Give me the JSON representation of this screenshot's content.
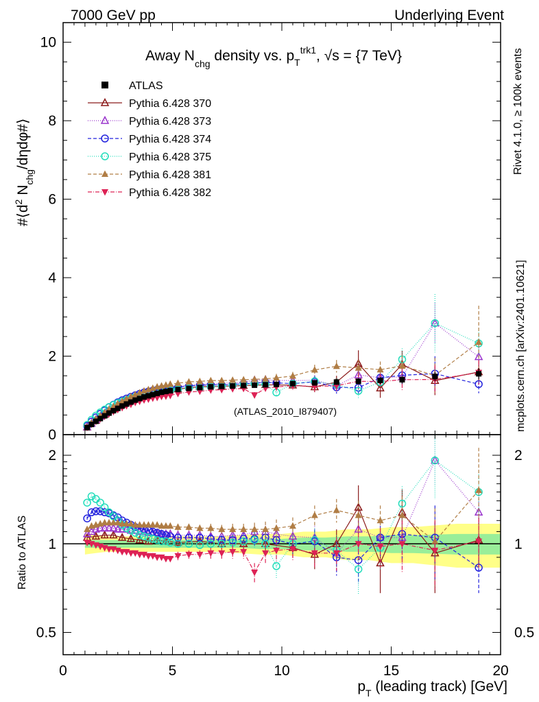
{
  "header": {
    "left": "7000 GeV pp",
    "right": "Underlying Event"
  },
  "side": {
    "rivet": "Rivet 4.1.0, ≥ 100k events",
    "mcplots": "mcplots.cern.ch [arXiv:2401.10621]"
  },
  "chart_data": {
    "type": "scatter",
    "title_parts": {
      "a": "Away N",
      "b": "chg",
      "c": " density vs. p",
      "d": "T",
      "e": "trk1",
      "f": ", √s = {7 TeV}"
    },
    "watermark": "(ATLAS_2010_I879407)",
    "ylabel_parts": {
      "a": "#⟨d",
      "b": "2",
      "c": " N",
      "d": "chg",
      "e": "/dηdφ#⟩"
    },
    "xlabel_parts": {
      "a": "p",
      "b": "T",
      "c": " (leading track) [GeV]"
    },
    "ratio_ylabel": "Ratio to ATLAS",
    "xlim": [
      0,
      20
    ],
    "ylim_main": [
      0,
      10.5
    ],
    "ylim_ratio": [
      0.42,
      2.35
    ],
    "xticks": [
      "0",
      "5",
      "10",
      "15",
      "20"
    ],
    "yticks_main": [
      "0",
      "2",
      "4",
      "6",
      "8",
      "10"
    ],
    "yticks_ratio": [
      "0.5",
      "1",
      "2"
    ],
    "band": {
      "x": [
        1.0,
        1.5,
        2.0,
        3.0,
        4.0,
        5.0,
        6.0,
        7.0,
        8.0,
        9.0,
        10.0,
        11.0,
        12.0,
        13.0,
        14.0,
        15.0,
        16.0,
        18.0,
        20.0
      ],
      "stat": [
        0.03,
        0.03,
        0.03,
        0.03,
        0.03,
        0.03,
        0.03,
        0.03,
        0.03,
        0.04,
        0.04,
        0.05,
        0.05,
        0.06,
        0.06,
        0.07,
        0.07,
        0.08,
        0.08
      ],
      "tot": [
        0.08,
        0.07,
        0.06,
        0.06,
        0.06,
        0.06,
        0.06,
        0.06,
        0.07,
        0.08,
        0.08,
        0.1,
        0.1,
        0.12,
        0.12,
        0.14,
        0.14,
        0.17,
        0.17
      ]
    },
    "data": {
      "name": "ATLAS",
      "x": [
        1.1,
        1.3,
        1.5,
        1.7,
        1.9,
        2.1,
        2.3,
        2.5,
        2.7,
        2.9,
        3.1,
        3.3,
        3.5,
        3.7,
        3.9,
        4.1,
        4.3,
        4.5,
        4.7,
        4.9,
        5.25,
        5.75,
        6.25,
        6.75,
        7.25,
        7.75,
        8.25,
        8.75,
        9.25,
        9.75,
        10.5,
        11.5,
        12.5,
        13.5,
        14.5,
        15.5,
        17.0,
        19.0
      ],
      "y": [
        0.18,
        0.26,
        0.34,
        0.41,
        0.48,
        0.55,
        0.61,
        0.67,
        0.73,
        0.78,
        0.83,
        0.88,
        0.92,
        0.96,
        0.99,
        1.02,
        1.05,
        1.08,
        1.1,
        1.12,
        1.15,
        1.18,
        1.2,
        1.22,
        1.23,
        1.24,
        1.25,
        1.26,
        1.27,
        1.28,
        1.3,
        1.32,
        1.34,
        1.36,
        1.38,
        1.4,
        1.48,
        1.55
      ],
      "err": [
        0.01,
        0.01,
        0.01,
        0.01,
        0.01,
        0.01,
        0.01,
        0.01,
        0.01,
        0.01,
        0.01,
        0.01,
        0.01,
        0.01,
        0.01,
        0.01,
        0.01,
        0.01,
        0.01,
        0.01,
        0.02,
        0.02,
        0.02,
        0.02,
        0.03,
        0.03,
        0.03,
        0.04,
        0.04,
        0.05,
        0.05,
        0.06,
        0.07,
        0.08,
        0.09,
        0.1,
        0.12,
        0.14
      ],
      "color": "#000000"
    },
    "series": [
      {
        "name": "Pythia 6.428 370",
        "color": "#8B1A1A",
        "marker": "tri-open",
        "dash": "",
        "x": [
          1.1,
          1.5,
          1.9,
          2.3,
          2.7,
          3.1,
          3.5,
          3.9,
          4.3,
          4.7,
          5.25,
          6.25,
          7.25,
          8.25,
          9.25,
          10.5,
          11.5,
          12.5,
          13.5,
          14.5,
          15.5,
          17.0,
          19.0
        ],
        "r": [
          1.05,
          1.06,
          1.07,
          1.07,
          1.05,
          1.04,
          1.03,
          1.02,
          1.03,
          1.02,
          1.01,
          1.02,
          1.0,
          1.0,
          1.0,
          0.97,
          0.92,
          1.0,
          1.33,
          0.86,
          1.28,
          0.93,
          1.03
        ],
        "e": [
          0.02,
          0.02,
          0.02,
          0.02,
          0.02,
          0.02,
          0.02,
          0.02,
          0.02,
          0.02,
          0.03,
          0.03,
          0.04,
          0.05,
          0.06,
          0.07,
          0.1,
          0.12,
          0.25,
          0.18,
          0.25,
          0.25,
          0.2
        ]
      },
      {
        "name": "Pythia 6.428 373",
        "color": "#9933CC",
        "marker": "tri-open",
        "dash": "1,2",
        "x": [
          1.1,
          1.3,
          1.5,
          1.7,
          1.9,
          2.1,
          2.3,
          2.5,
          2.7,
          2.9,
          3.1,
          3.3,
          3.5,
          3.7,
          3.9,
          4.1,
          4.3,
          4.5,
          4.7,
          4.9,
          5.25,
          5.75,
          6.25,
          6.75,
          7.25,
          7.75,
          8.25,
          8.75,
          9.25,
          9.75,
          10.5,
          11.5,
          12.5,
          13.5,
          14.5,
          15.5,
          17.0,
          19.0
        ],
        "r": [
          1.08,
          1.1,
          1.12,
          1.13,
          1.13,
          1.13,
          1.13,
          1.12,
          1.12,
          1.12,
          1.11,
          1.11,
          1.1,
          1.1,
          1.09,
          1.09,
          1.09,
          1.08,
          1.08,
          1.08,
          1.07,
          1.07,
          1.07,
          1.06,
          1.06,
          1.07,
          1.07,
          1.1,
          1.1,
          1.08,
          1.06,
          1.05,
          0.93,
          1.12,
          1.05,
          1.05,
          1.92,
          1.28
        ],
        "e": [
          0.02,
          0.02,
          0.02,
          0.02,
          0.02,
          0.02,
          0.02,
          0.02,
          0.02,
          0.02,
          0.02,
          0.02,
          0.02,
          0.02,
          0.02,
          0.02,
          0.02,
          0.02,
          0.02,
          0.02,
          0.03,
          0.03,
          0.03,
          0.04,
          0.04,
          0.05,
          0.05,
          0.06,
          0.07,
          0.08,
          0.08,
          0.1,
          0.12,
          0.15,
          0.15,
          0.2,
          0.35,
          0.25
        ]
      },
      {
        "name": "Pythia 6.428 374",
        "color": "#2222DD",
        "marker": "circ-open",
        "dash": "5,3",
        "x": [
          1.1,
          1.3,
          1.5,
          1.7,
          1.9,
          2.1,
          2.3,
          2.5,
          2.7,
          2.9,
          3.1,
          3.3,
          3.5,
          3.7,
          3.9,
          4.1,
          4.3,
          4.5,
          4.7,
          4.9,
          5.25,
          5.75,
          6.25,
          6.75,
          7.25,
          7.75,
          8.25,
          8.75,
          9.25,
          9.75,
          10.5,
          11.5,
          12.5,
          13.5,
          14.5,
          15.5,
          17.0,
          19.0
        ],
        "r": [
          1.22,
          1.28,
          1.29,
          1.29,
          1.28,
          1.27,
          1.25,
          1.23,
          1.2,
          1.18,
          1.16,
          1.14,
          1.13,
          1.12,
          1.11,
          1.1,
          1.09,
          1.08,
          1.07,
          1.06,
          1.05,
          1.05,
          1.05,
          1.04,
          1.03,
          1.03,
          1.04,
          1.04,
          1.05,
          1.03,
          1.0,
          1.02,
          0.9,
          0.88,
          1.05,
          1.08,
          1.05,
          0.83
        ],
        "e": [
          0.02,
          0.02,
          0.02,
          0.02,
          0.02,
          0.02,
          0.02,
          0.02,
          0.02,
          0.02,
          0.02,
          0.02,
          0.02,
          0.02,
          0.02,
          0.02,
          0.02,
          0.02,
          0.02,
          0.02,
          0.03,
          0.03,
          0.03,
          0.04,
          0.04,
          0.05,
          0.05,
          0.06,
          0.07,
          0.08,
          0.08,
          0.1,
          0.12,
          0.15,
          0.15,
          0.2,
          0.3,
          0.15
        ]
      },
      {
        "name": "Pythia 6.428 375",
        "color": "#22DDBB",
        "marker": "circ-open",
        "dash": "1,2",
        "x": [
          1.1,
          1.3,
          1.5,
          1.7,
          1.9,
          2.1,
          2.3,
          2.5,
          2.7,
          2.9,
          3.1,
          3.3,
          3.5,
          3.7,
          3.9,
          4.1,
          4.3,
          4.5,
          4.7,
          4.9,
          5.25,
          5.75,
          6.25,
          6.75,
          7.25,
          7.75,
          8.25,
          8.75,
          9.25,
          9.75,
          10.5,
          11.5,
          12.5,
          13.5,
          14.5,
          15.5,
          17.0,
          19.0
        ],
        "r": [
          1.38,
          1.45,
          1.42,
          1.38,
          1.33,
          1.28,
          1.24,
          1.2,
          1.16,
          1.13,
          1.11,
          1.09,
          1.07,
          1.06,
          1.05,
          1.04,
          1.03,
          1.02,
          1.02,
          1.01,
          1.0,
          1.0,
          0.99,
          1.0,
          1.0,
          1.01,
          1.02,
          1.03,
          1.0,
          0.84,
          1.0,
          1.03,
          0.95,
          0.82,
          0.97,
          1.37,
          1.92,
          1.5
        ],
        "e": [
          0.02,
          0.02,
          0.02,
          0.02,
          0.02,
          0.02,
          0.02,
          0.02,
          0.02,
          0.02,
          0.02,
          0.02,
          0.02,
          0.02,
          0.02,
          0.02,
          0.02,
          0.02,
          0.02,
          0.02,
          0.03,
          0.03,
          0.03,
          0.04,
          0.04,
          0.05,
          0.05,
          0.06,
          0.07,
          0.08,
          0.08,
          0.1,
          0.12,
          0.15,
          0.15,
          0.2,
          0.5,
          0.25
        ]
      },
      {
        "name": "Pythia 6.428 381",
        "color": "#B07D45",
        "marker": "tri-fill",
        "dash": "5,3",
        "x": [
          1.1,
          1.3,
          1.5,
          1.7,
          1.9,
          2.1,
          2.3,
          2.5,
          2.7,
          2.9,
          3.1,
          3.3,
          3.5,
          3.7,
          3.9,
          4.1,
          4.3,
          4.5,
          4.7,
          4.9,
          5.25,
          5.75,
          6.25,
          6.75,
          7.25,
          7.75,
          8.25,
          8.75,
          9.25,
          9.75,
          10.5,
          11.5,
          12.5,
          13.5,
          14.5,
          15.5,
          17.0,
          19.0
        ],
        "r": [
          1.12,
          1.15,
          1.16,
          1.17,
          1.18,
          1.18,
          1.18,
          1.18,
          1.17,
          1.17,
          1.17,
          1.16,
          1.16,
          1.16,
          1.16,
          1.16,
          1.16,
          1.15,
          1.15,
          1.15,
          1.14,
          1.14,
          1.13,
          1.13,
          1.12,
          1.12,
          1.12,
          1.12,
          1.12,
          1.13,
          1.15,
          1.25,
          1.3,
          1.25,
          1.2,
          1.25,
          1.02,
          1.52
        ],
        "e": [
          0.02,
          0.02,
          0.02,
          0.02,
          0.02,
          0.02,
          0.02,
          0.02,
          0.02,
          0.02,
          0.02,
          0.02,
          0.02,
          0.02,
          0.02,
          0.02,
          0.02,
          0.02,
          0.02,
          0.02,
          0.03,
          0.03,
          0.03,
          0.04,
          0.04,
          0.05,
          0.05,
          0.06,
          0.07,
          0.08,
          0.08,
          0.1,
          0.12,
          0.15,
          0.15,
          0.2,
          0.3,
          0.6
        ]
      },
      {
        "name": "Pythia 6.428 382",
        "color": "#DD2255",
        "marker": "tri-down-fill",
        "dash": "6,2,1,2",
        "x": [
          1.1,
          1.3,
          1.5,
          1.7,
          1.9,
          2.1,
          2.3,
          2.5,
          2.7,
          2.9,
          3.1,
          3.3,
          3.5,
          3.7,
          3.9,
          4.1,
          4.3,
          4.5,
          4.7,
          4.9,
          5.25,
          5.75,
          6.25,
          6.75,
          7.25,
          7.75,
          8.25,
          8.75,
          9.25,
          9.75,
          10.5,
          11.5,
          12.5,
          13.5,
          14.5,
          15.5,
          17.0,
          19.0
        ],
        "r": [
          1.01,
          1.0,
          0.99,
          0.98,
          0.97,
          0.96,
          0.96,
          0.95,
          0.94,
          0.94,
          0.93,
          0.93,
          0.92,
          0.92,
          0.91,
          0.91,
          0.9,
          0.9,
          0.89,
          0.89,
          0.91,
          0.92,
          0.92,
          0.93,
          0.93,
          0.94,
          0.94,
          0.8,
          0.93,
          0.95,
          0.96,
          0.93,
          0.93,
          1.0,
          0.98,
          1.0,
          0.95,
          1.02
        ],
        "e": [
          0.02,
          0.02,
          0.02,
          0.02,
          0.02,
          0.02,
          0.02,
          0.02,
          0.02,
          0.02,
          0.02,
          0.02,
          0.02,
          0.02,
          0.02,
          0.02,
          0.02,
          0.02,
          0.02,
          0.02,
          0.03,
          0.03,
          0.03,
          0.04,
          0.04,
          0.05,
          0.05,
          0.06,
          0.07,
          0.08,
          0.08,
          0.1,
          0.12,
          0.15,
          0.15,
          0.2,
          0.25,
          0.2
        ]
      }
    ]
  }
}
